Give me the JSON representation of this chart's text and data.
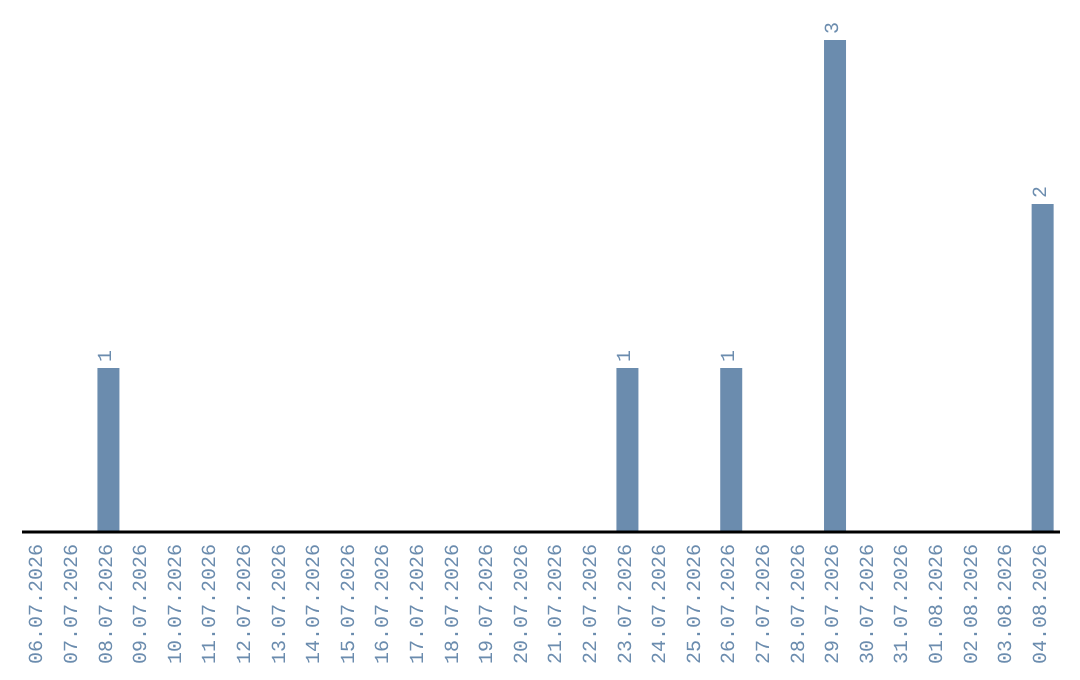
{
  "chart_data": {
    "type": "bar",
    "categories": [
      "06.07.2026",
      "07.07.2026",
      "08.07.2026",
      "09.07.2026",
      "10.07.2026",
      "11.07.2026",
      "12.07.2026",
      "13.07.2026",
      "14.07.2026",
      "15.07.2026",
      "16.07.2026",
      "17.07.2026",
      "18.07.2026",
      "19.07.2026",
      "20.07.2026",
      "21.07.2026",
      "22.07.2026",
      "23.07.2026",
      "24.07.2026",
      "25.07.2026",
      "26.07.2026",
      "27.07.2026",
      "28.07.2026",
      "29.07.2026",
      "30.07.2026",
      "31.07.2026",
      "01.08.2026",
      "02.08.2026",
      "03.08.2026",
      "04.08.2026"
    ],
    "values": [
      0,
      0,
      1,
      0,
      0,
      0,
      0,
      0,
      0,
      0,
      0,
      0,
      0,
      0,
      0,
      0,
      0,
      1,
      0,
      0,
      1,
      0,
      0,
      3,
      0,
      0,
      0,
      0,
      0,
      2
    ],
    "value_labels": [
      null,
      null,
      "1",
      null,
      null,
      null,
      null,
      null,
      null,
      null,
      null,
      null,
      null,
      null,
      null,
      null,
      null,
      "1",
      null,
      null,
      "1",
      null,
      null,
      "3",
      null,
      null,
      null,
      null,
      null,
      "2"
    ],
    "color": "#6b8cae",
    "grid": false,
    "legend": false
  }
}
